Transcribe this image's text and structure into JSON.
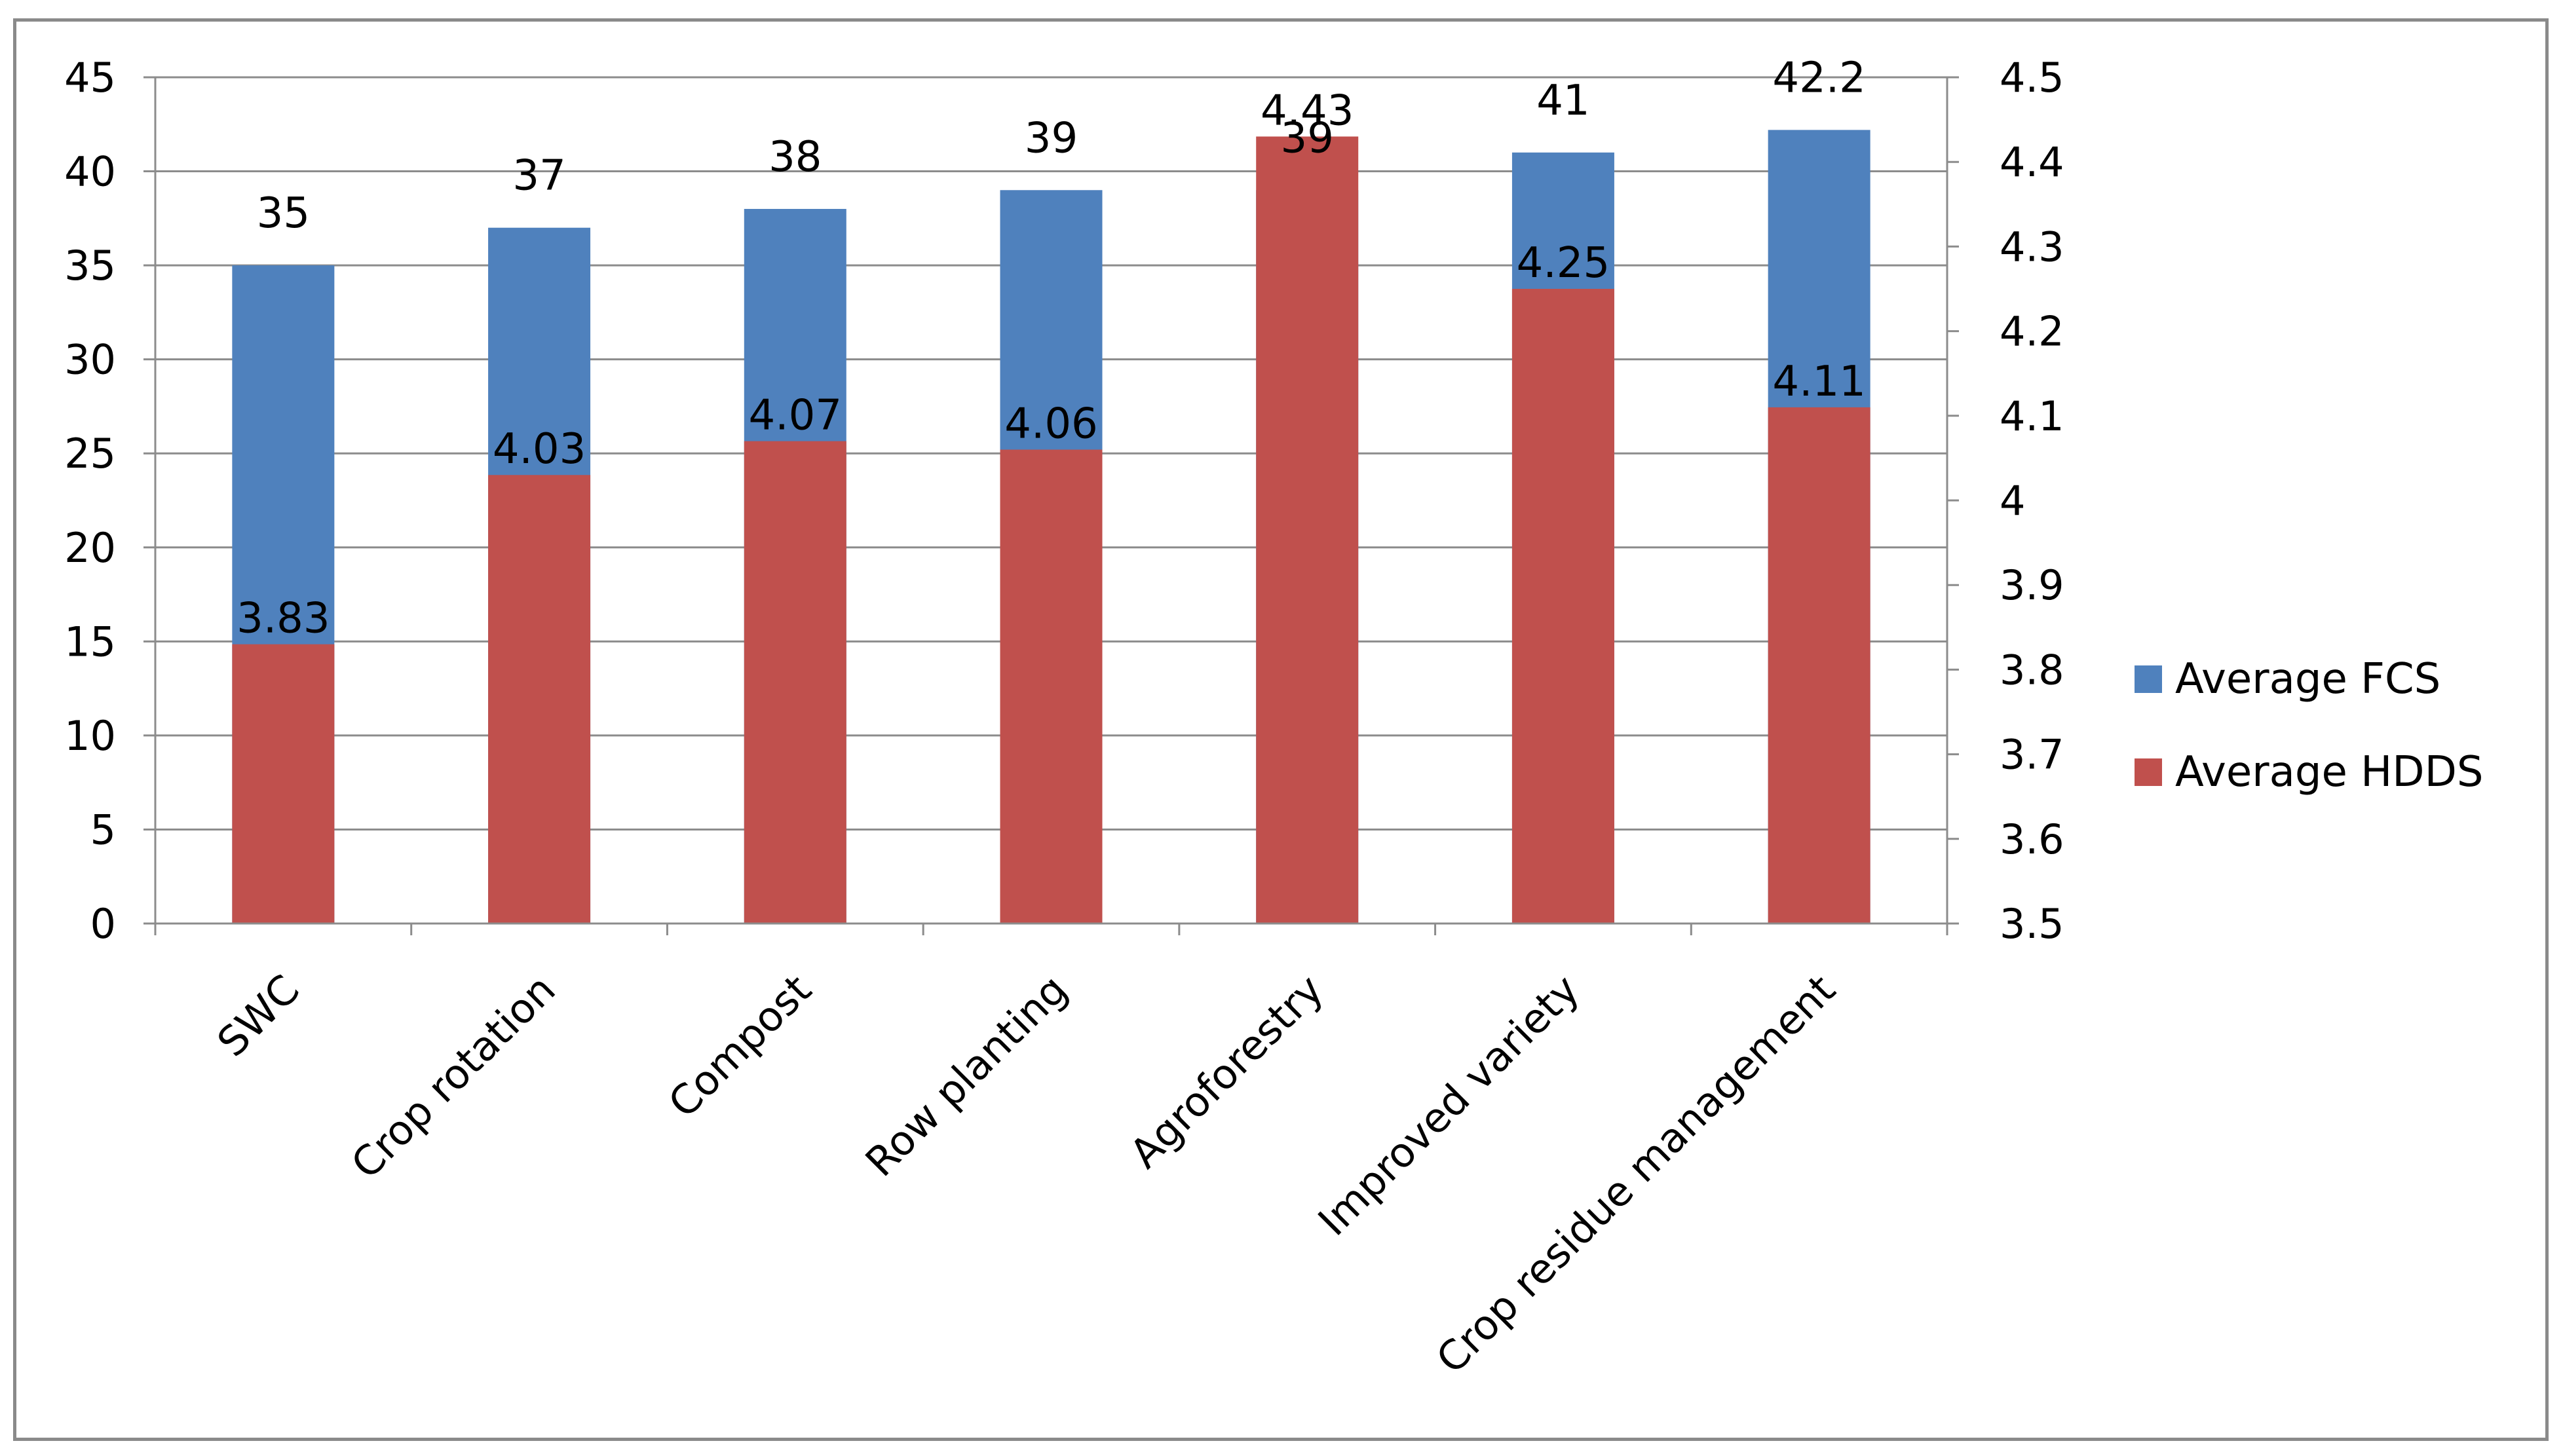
{
  "chart_data": {
    "type": "bar",
    "title": "",
    "xlabel": "",
    "ylabel": "",
    "categories": [
      "SWC",
      "Crop rotation",
      "Compost",
      "Row planting",
      "Agroforestry",
      "Improved variety",
      "Crop residue  management"
    ],
    "series": [
      {
        "name": "Average FCS",
        "axis": "left",
        "color": "#4F81BD",
        "values": [
          35,
          37,
          38,
          39,
          39,
          41,
          42.2
        ],
        "labels": [
          "35",
          "37",
          "38",
          "39",
          "39",
          "41",
          "42.2"
        ]
      },
      {
        "name": "Average HDDS",
        "axis": "right",
        "color": "#C0504D",
        "values": [
          3.83,
          4.03,
          4.07,
          4.06,
          4.43,
          4.25,
          4.11
        ],
        "labels": [
          "3.83",
          "4.03",
          "4.07",
          "4.06",
          "4.43",
          "4.25",
          "4.11"
        ]
      }
    ],
    "y_left": {
      "min": 0,
      "max": 45,
      "step": 5,
      "ticks": [
        "0",
        "5",
        "10",
        "15",
        "20",
        "25",
        "30",
        "35",
        "40",
        "45"
      ]
    },
    "y_right": {
      "min": 3.5,
      "max": 4.5,
      "step": 0.1,
      "ticks": [
        "3.5",
        "3.6",
        "3.7",
        "3.8",
        "3.9",
        "4",
        "4.1",
        "4.2",
        "4.3",
        "4.4",
        "4.5"
      ]
    },
    "grid": true,
    "legend_position": "right"
  }
}
